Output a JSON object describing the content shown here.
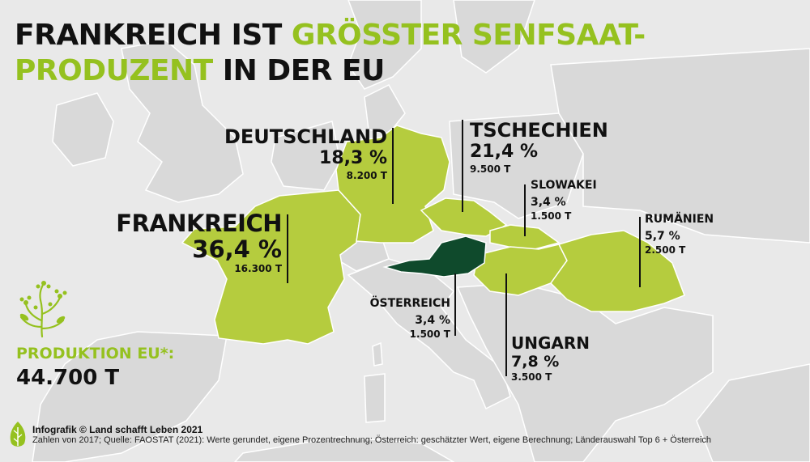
{
  "title": {
    "part1": "FRANKREICH IST ",
    "part2": "GRÖSSTER SENFSAAT-",
    "part3": "PRODUZENT",
    "part4": " IN DER EU"
  },
  "colors": {
    "accent": "#95c11f",
    "land_green": "#b5cc3e",
    "austria": "#0f4a2c",
    "base_land": "#d7d7d7",
    "sea": "#e9e9e9"
  },
  "countries": {
    "frankreich": {
      "name": "FRANKREICH",
      "percent": "36,4 %",
      "tons": "16.300 T"
    },
    "deutschland": {
      "name": "DEUTSCHLAND",
      "percent": "18,3 %",
      "tons": "8.200 T"
    },
    "tschechien": {
      "name": "TSCHECHIEN",
      "percent": "21,4 %",
      "tons": "9.500 T"
    },
    "slowakei": {
      "name": "SLOWAKEI",
      "percent": "3,4 %",
      "tons": "1.500 T"
    },
    "rumaenien": {
      "name": "RUMÄNIEN",
      "percent": "5,7 %",
      "tons": "2.500 T"
    },
    "oesterreich": {
      "name": "ÖSTERREICH",
      "percent": "3,4 %",
      "tons": "1.500 T"
    },
    "ungarn": {
      "name": "UNGARN",
      "percent": "7,8 %",
      "tons": "3.500 T"
    }
  },
  "production": {
    "label": "PRODUKTION EU*:",
    "value": "44.700 T"
  },
  "footer": {
    "credit": "Infografik © Land schafft Leben 2021",
    "source": "Zahlen von 2017; Quelle: FAOSTAT (2021): Werte gerundet, eigene Prozentrechnung; Österreich: geschätzter Wert, eigene Berechnung; Länderauswahl Top 6 + Österreich"
  },
  "icons": {
    "plant": "mustard-plant-icon",
    "logo": "leaf-logo-icon"
  }
}
